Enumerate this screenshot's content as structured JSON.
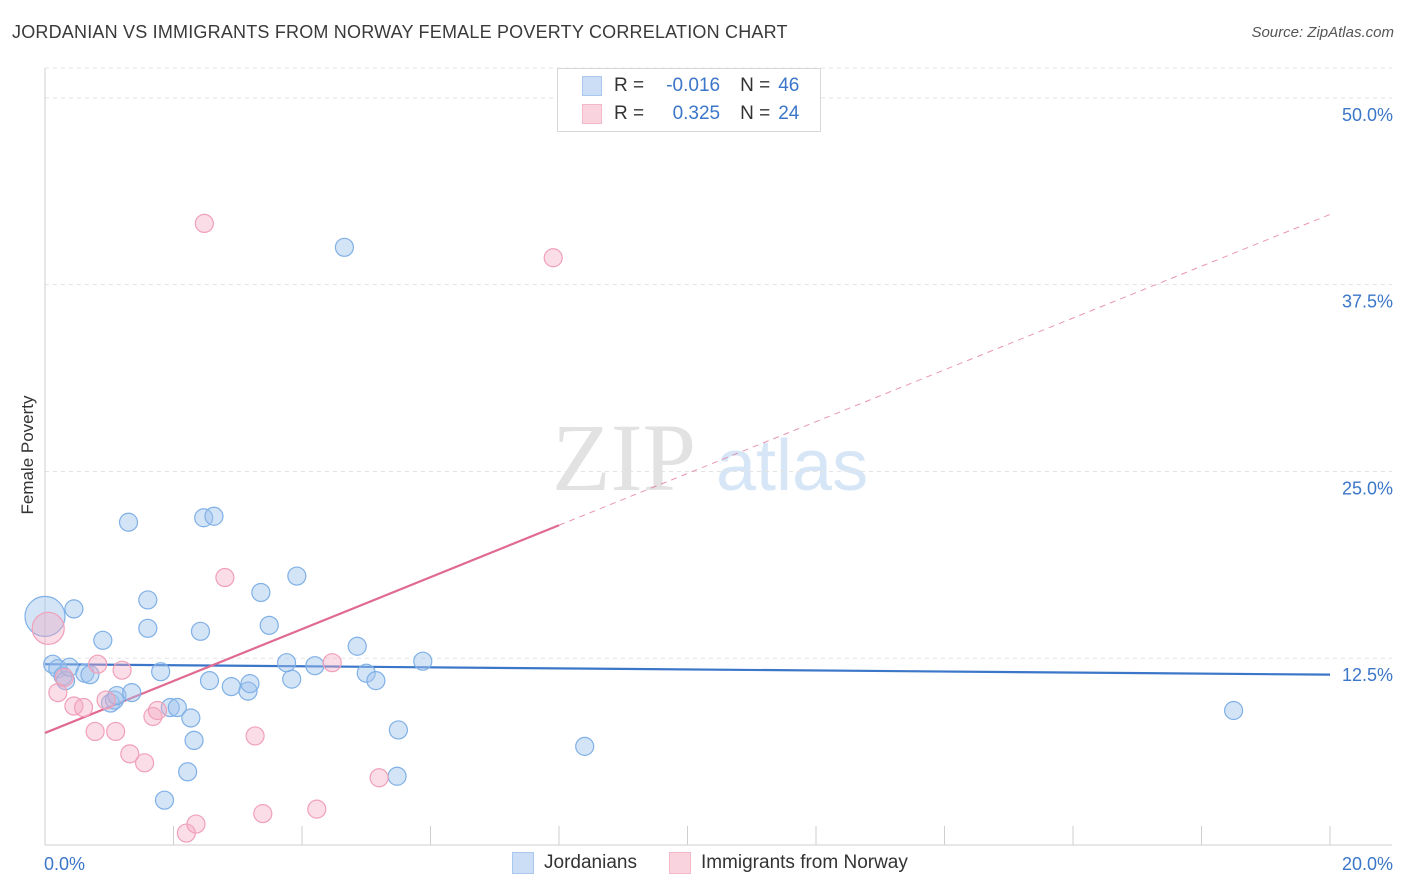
{
  "header": {
    "title": "JORDANIAN VS IMMIGRANTS FROM NORWAY FEMALE POVERTY CORRELATION CHART",
    "source": "Source: ZipAtlas.com"
  },
  "watermark": {
    "zip": "ZIP",
    "atlas": "atlas"
  },
  "stats": {
    "rows": [
      {
        "r_label": "R =",
        "r_value": "-0.016",
        "n_label": "N =",
        "n_value": "46",
        "color": "#a8c8f0"
      },
      {
        "r_label": "R =",
        "r_value": "0.325",
        "n_label": "N =",
        "n_value": "24",
        "color": "#f5b8c8"
      }
    ]
  },
  "legend": {
    "items": [
      {
        "label": "Jordanians",
        "color": "#a8c8f0"
      },
      {
        "label": "Immigrants from Norway",
        "color": "#f5b8c8"
      }
    ]
  },
  "chart_data": {
    "type": "scatter",
    "title": "JORDANIAN VS IMMIGRANTS FROM NORWAY FEMALE POVERTY CORRELATION CHART",
    "xlabel": "",
    "ylabel": "Female Poverty",
    "xlim": [
      0,
      20
    ],
    "ylim": [
      0,
      52
    ],
    "x_tick_labels": [
      "0.0%",
      "20.0%"
    ],
    "y_ticks": [
      12.5,
      25.0,
      37.5,
      50.0
    ],
    "y_tick_labels": [
      "12.5%",
      "25.0%",
      "37.5%",
      "50.0%"
    ],
    "grid": true,
    "legend_position": "bottom",
    "series": [
      {
        "name": "Jordanians",
        "color": "#7fb0e6",
        "x": [
          0.0,
          0.12,
          0.2,
          0.28,
          0.32,
          0.38,
          0.45,
          0.62,
          0.7,
          0.9,
          1.02,
          1.08,
          1.12,
          1.35,
          1.6,
          1.6,
          1.8,
          1.95,
          2.06,
          2.27,
          2.32,
          2.22,
          2.56,
          2.42,
          2.47,
          2.63,
          2.9,
          3.16,
          3.19,
          3.36,
          3.49,
          3.84,
          3.92,
          3.76,
          4.2,
          4.66,
          4.86,
          5.0,
          5.15,
          5.48,
          5.5,
          5.88,
          8.4,
          18.5,
          1.86,
          1.3
        ],
        "y": [
          15.3,
          12.1,
          11.8,
          11.3,
          11.0,
          11.9,
          15.8,
          11.5,
          11.4,
          13.7,
          9.5,
          9.7,
          10.0,
          10.2,
          14.5,
          16.4,
          11.6,
          9.2,
          9.2,
          8.5,
          7.0,
          4.9,
          11.0,
          14.3,
          21.9,
          22.0,
          10.6,
          10.3,
          10.8,
          16.9,
          14.7,
          11.1,
          18.0,
          12.2,
          12.0,
          40.0,
          13.3,
          11.5,
          11.0,
          4.6,
          7.7,
          12.3,
          6.6,
          9.0,
          3.0,
          21.6
        ],
        "sizes": [
          20,
          9,
          9,
          9,
          9,
          9,
          9,
          9,
          9,
          9,
          9,
          9,
          9,
          9,
          9,
          9,
          9,
          9,
          9,
          9,
          9,
          9,
          9,
          9,
          9,
          9,
          9,
          9,
          9,
          9,
          9,
          9,
          9,
          9,
          9,
          9,
          9,
          9,
          9,
          9,
          9,
          9,
          9,
          9,
          9,
          9
        ]
      },
      {
        "name": "Immigrants from Norway",
        "color": "#f0a0b8",
        "x": [
          0.05,
          0.2,
          0.3,
          0.45,
          0.6,
          0.78,
          0.82,
          0.95,
          1.1,
          1.2,
          1.32,
          1.55,
          1.68,
          1.75,
          2.2,
          2.35,
          2.48,
          2.8,
          3.27,
          3.39,
          4.23,
          4.47,
          5.2,
          7.91
        ],
        "y": [
          14.5,
          10.2,
          11.2,
          9.3,
          9.2,
          7.6,
          12.1,
          9.7,
          7.6,
          11.7,
          6.1,
          5.5,
          8.6,
          9.0,
          0.8,
          1.4,
          41.6,
          17.9,
          7.3,
          2.1,
          2.4,
          12.2,
          4.5,
          39.3
        ],
        "sizes": [
          16,
          9,
          9,
          9,
          9,
          9,
          9,
          9,
          9,
          9,
          9,
          9,
          9,
          9,
          9,
          9,
          9,
          9,
          9,
          9,
          9,
          9,
          9,
          9
        ]
      }
    ],
    "trend_lines": [
      {
        "series": "Jordanians",
        "x": [
          0,
          20
        ],
        "y": [
          12.1,
          11.4
        ],
        "color": "#3b76c8"
      },
      {
        "series": "Immigrants from Norway",
        "x": [
          0,
          8.0
        ],
        "y": [
          7.5,
          21.4
        ],
        "extended_to": [
          20,
          42.2
        ],
        "color": "#e06a92"
      }
    ]
  }
}
